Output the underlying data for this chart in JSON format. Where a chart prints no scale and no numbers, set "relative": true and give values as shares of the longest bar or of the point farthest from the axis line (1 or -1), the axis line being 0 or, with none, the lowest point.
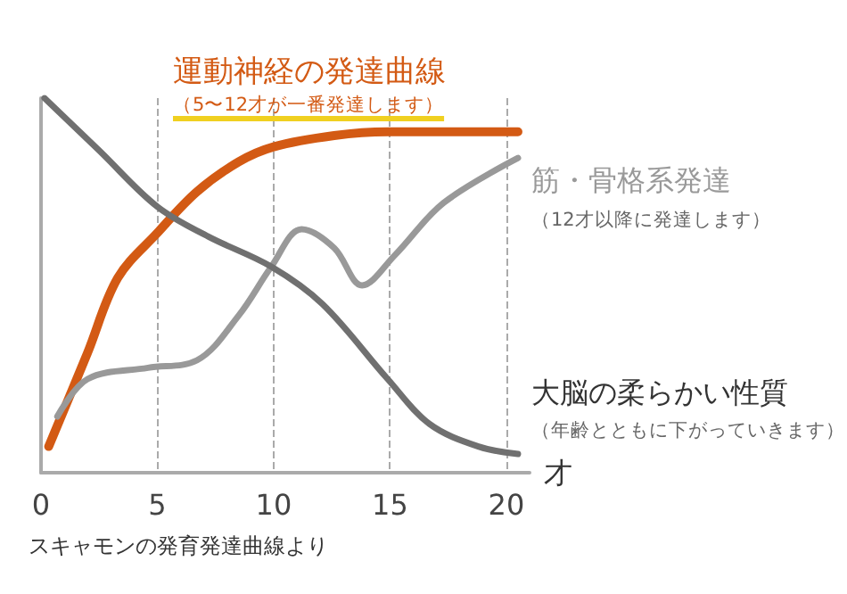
{
  "chart_data": {
    "type": "line",
    "relative": true,
    "xlabel": "才",
    "xlim": [
      0,
      21
    ],
    "xticks": [
      0,
      5,
      10,
      15,
      20
    ],
    "grid": "x",
    "marker": "none",
    "line_style": "solid",
    "annotations": [
      "（5〜12才が一番発達します）",
      "（12才以降に発達します）",
      "（年齢とともに下がっていきます）",
      "スキャモンの発育発達曲線より"
    ],
    "series": [
      {
        "name": "運動神経の発達曲線",
        "color": "#d35a14",
        "x": [
          0.33,
          2.0,
          3.3,
          5.0,
          6.7,
          8.5,
          10.0,
          12.6,
          14.9,
          20.5
        ],
        "values": [
          0.07,
          0.32,
          0.52,
          0.64,
          0.75,
          0.83,
          0.87,
          0.9,
          0.91,
          0.91
        ]
      },
      {
        "name": "筋・骨格系発達",
        "color": "#999999",
        "x": [
          0.7,
          2.0,
          4.6,
          6.7,
          8.5,
          9.9,
          11.2,
          12.6,
          13.8,
          15.2,
          17.3,
          20.5
        ],
        "values": [
          0.15,
          0.25,
          0.28,
          0.3,
          0.42,
          0.55,
          0.65,
          0.6,
          0.5,
          0.58,
          0.72,
          0.84
        ]
      },
      {
        "name": "大脳の柔らかい性質",
        "color": "#707070",
        "x": [
          0.15,
          2.5,
          5.0,
          7.2,
          9.9,
          12.1,
          14.9,
          16.7,
          18.8,
          20.5
        ],
        "values": [
          1,
          0.86,
          0.71,
          0.63,
          0.55,
          0.45,
          0.25,
          0.13,
          0.07,
          0.05
        ]
      }
    ]
  }
}
